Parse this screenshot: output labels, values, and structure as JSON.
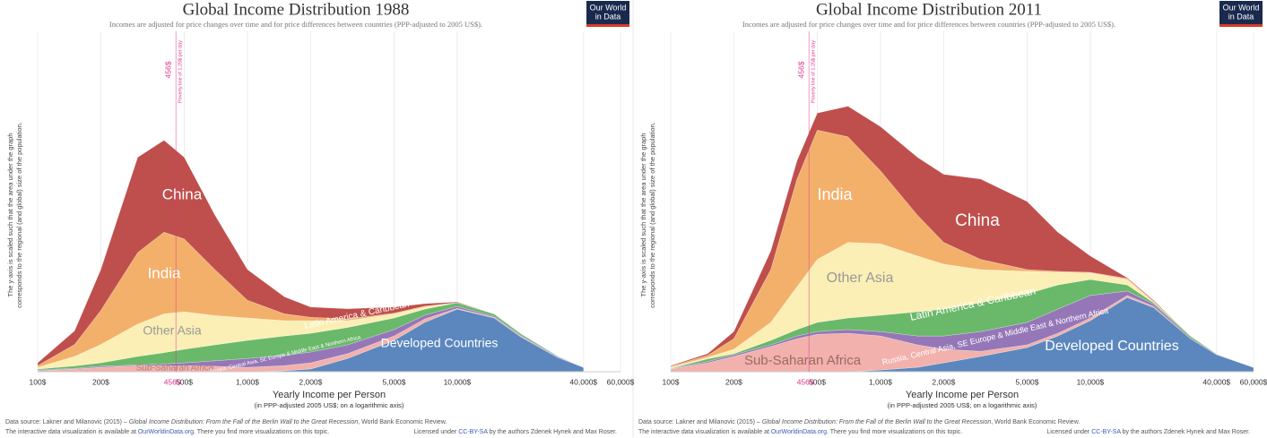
{
  "chart_data": [
    {
      "type": "area",
      "stacked": true,
      "title": "Global Income Distribution 1988",
      "subtitle": "Incomes are adjusted for price changes over time and for price differences between countries (PPP-adjusted to 2005 US$).",
      "logo": [
        "Our World",
        "in Data"
      ],
      "x_label": "Yearly Income per Person",
      "x_sublabel": "(in PPP-adjusted 2005 US$; on a logarithmic axis)",
      "y_label": [
        "The y-axis is scaled such that the area under the graph",
        "corresponds to the regional (and global) size of the population."
      ],
      "x_log": true,
      "xlim": [
        100,
        60000
      ],
      "ylim": [
        0,
        100
      ],
      "xticks": [
        {
          "value": 100,
          "label": "100$"
        },
        {
          "value": 200,
          "label": "200$"
        },
        {
          "value": 500,
          "label": "500$"
        },
        {
          "value": 1000,
          "label": "1,000$"
        },
        {
          "value": 2000,
          "label": "2,000$"
        },
        {
          "value": 5000,
          "label": "5,000$"
        },
        {
          "value": 10000,
          "label": "10,000$"
        },
        {
          "value": 40000,
          "label": "40,000$"
        },
        {
          "value": 60000,
          "label": "60,000$"
        }
      ],
      "poverty_line": {
        "value": 456,
        "label": "456$",
        "note": "Poverty line of 1.25$ per day"
      },
      "x": [
        100,
        150,
        200,
        300,
        400,
        500,
        700,
        1000,
        1500,
        2000,
        3000,
        5000,
        7000,
        10000,
        15000,
        20000,
        30000,
        40000
      ],
      "series": [
        {
          "name": "Developed Countries",
          "color": "#5b87be",
          "values": [
            0,
            0,
            0,
            0,
            0,
            0,
            0,
            0,
            0.3,
            0.8,
            3.9,
            9.2,
            14.5,
            18.4,
            15.8,
            10.3,
            4.2,
            1.3
          ]
        },
        {
          "name": "Sub-Saharan Africa",
          "color": "#f2b1ac",
          "values": [
            0.3,
            0.8,
            1.3,
            1.8,
            1.8,
            1.8,
            1.6,
            1.3,
            1.5,
            1.8,
            1.4,
            1.3,
            1,
            0.2,
            0.2,
            0.2,
            0.1,
            0
          ]
        },
        {
          "name": "Russia, Central Asia, SE Europe & Middle East & Northern Africa",
          "color": "#9577b8",
          "values": [
            0.2,
            0.2,
            0.3,
            0.2,
            0.5,
            0.8,
            1.6,
            2.6,
            3,
            3.2,
            2.6,
            1.9,
            1.1,
            0.6,
            0.3,
            0.3,
            0.2,
            0
          ]
        },
        {
          "name": "Latin America & Caribbean",
          "color": "#6ab86a",
          "values": [
            0.3,
            0.7,
            1,
            2.5,
            3.3,
            4,
            4.7,
            5.3,
            5.7,
            5.5,
            5.1,
            3.4,
            1.8,
            1.1,
            0.7,
            0.5,
            0.2,
            0
          ]
        },
        {
          "name": "Other Asia",
          "color": "#fbefb5",
          "values": [
            0.5,
            2.8,
            5.4,
            9.5,
            11.4,
            11,
            8.6,
            6.6,
            4.5,
            3.7,
            2,
            1.2,
            0.6,
            0,
            0,
            0,
            0,
            0
          ]
        },
        {
          "name": "India",
          "color": "#f3b06b",
          "values": [
            0.5,
            3.5,
            10,
            21,
            24,
            21.4,
            13.5,
            5.2,
            2,
            1,
            0.5,
            0.2,
            0.3,
            0,
            0,
            0,
            0,
            0
          ]
        },
        {
          "name": "China",
          "color": "#bf4f4c",
          "values": [
            0.8,
            4,
            12,
            28,
            27,
            24,
            16,
            9,
            5,
            3,
            3,
            1.8,
            0.7,
            0.2,
            0,
            0,
            0,
            0
          ]
        }
      ],
      "source": [
        "Data source: Lakner and Milanovic (2015) – ",
        "Global Income Distribution: From the Fall of the Berlin Wall to the Great Recession",
        ", World Bank Economic Review."
      ],
      "viz_note": [
        "The interactive data visualization is available at ",
        "OurWorldinData.org",
        ". There you find more visualizations on this topic."
      ],
      "license": [
        "Licensed under ",
        "CC-BY-SA",
        " by the authors Zdenek Hynek and Max Roser."
      ]
    },
    {
      "type": "area",
      "stacked": true,
      "title": "Global Income Distribution 2011",
      "subtitle": "Incomes are adjusted for price changes over time and for price differences between countries (PPP-adjusted to 2005 US$).",
      "logo": [
        "Our World",
        "in Data"
      ],
      "x_label": "Yearly Income per Person",
      "x_sublabel": "(in PPP-adjusted 2005 US$; on a logarithmic axis)",
      "y_label": [
        "The y-axis is scaled such that the area under the graph",
        "corresponds to the regional (and global) size of the population."
      ],
      "x_log": true,
      "xlim": [
        100,
        60000
      ],
      "ylim": [
        0,
        100
      ],
      "xticks": [
        {
          "value": 100,
          "label": "100$"
        },
        {
          "value": 200,
          "label": "200$"
        },
        {
          "value": 500,
          "label": "500$"
        },
        {
          "value": 1000,
          "label": "1,000$"
        },
        {
          "value": 2000,
          "label": "2,000$"
        },
        {
          "value": 5000,
          "label": "5,000$"
        },
        {
          "value": 10000,
          "label": "10,000$"
        },
        {
          "value": 40000,
          "label": "40,000$"
        },
        {
          "value": 60000,
          "label": "60,000$"
        }
      ],
      "poverty_line": {
        "value": 456,
        "label": "456$",
        "note": "Poverty line of 1.25$ per day"
      },
      "x": [
        100,
        150,
        200,
        300,
        400,
        500,
        700,
        1000,
        1500,
        2000,
        3000,
        5000,
        7000,
        10000,
        15000,
        20000,
        30000,
        40000,
        60000
      ],
      "series": [
        {
          "name": "Developed Countries",
          "color": "#5b87be",
          "values": [
            0,
            0,
            0,
            0,
            0,
            0,
            0,
            0.5,
            1.3,
            2.6,
            4.5,
            7.1,
            10.5,
            15,
            21.8,
            18.9,
            9.7,
            5,
            1.3
          ]
        },
        {
          "name": "Sub-Saharan Africa",
          "color": "#f2b1ac",
          "values": [
            0.8,
            2.6,
            4.5,
            7.4,
            9.7,
            11,
            11.3,
            10,
            6.6,
            4,
            1.5,
            0.8,
            0.8,
            0.8,
            0.6,
            0.3,
            0,
            0,
            0
          ]
        },
        {
          "name": "Russia, Central Asia, SE Europe & Middle East & Northern Africa",
          "color": "#9577b8",
          "values": [
            0.1,
            0.4,
            0.5,
            0.5,
            0.8,
            0.8,
            1.1,
            1.3,
            2.6,
            3.9,
            5.8,
            6.6,
            7.1,
            6.6,
            1.3,
            0.7,
            0.3,
            0.1,
            0
          ]
        },
        {
          "name": "Latin America & Caribbean",
          "color": "#6ab86a",
          "values": [
            0.1,
            0.8,
            0.3,
            1.3,
            1.9,
            2.7,
            3.4,
            4.8,
            7.1,
            7.9,
            8.5,
            8.4,
            7.1,
            4.7,
            1.8,
            0.4,
            0.5,
            0.2,
            0
          ]
        },
        {
          "name": "Other Asia",
          "color": "#fbefb5",
          "values": [
            0.3,
            0.4,
            1.3,
            5.3,
            12.6,
            18.5,
            22.2,
            21,
            16.4,
            13.2,
            9.7,
            6.6,
            3.7,
            1.9,
            1.6,
            0.2,
            0,
            0,
            0
          ]
        },
        {
          "name": "India",
          "color": "#f3b06b",
          "values": [
            0.3,
            0.6,
            3.1,
            15.5,
            31.6,
            38,
            31,
            21.4,
            12,
            6.4,
            3,
            0.5,
            0.3,
            0.2,
            0.3,
            0.2,
            0,
            0,
            0
          ]
        },
        {
          "name": "China",
          "color": "#bf4f4c",
          "values": [
            0.2,
            0.5,
            2.1,
            5.5,
            5.4,
            5,
            9,
            13,
            17,
            20,
            23.6,
            20,
            11.5,
            4.8,
            0.2,
            0.3,
            0,
            0,
            0
          ]
        }
      ],
      "source": [
        "Data source: Lakner and Milanovic (2015) – ",
        "Global Income Distribution: From the Fall of the Berlin Wall to the Great Recession",
        ", World Bank Economic Review."
      ],
      "viz_note": [
        "The interactive data visualization is available at ",
        "OurWorldinData.org",
        ". There you find more visualizations on this topic."
      ],
      "license": [
        "Licensed under ",
        "CC-BY-SA",
        " by the authors Zdenek Hynek and Max Roser."
      ]
    }
  ]
}
